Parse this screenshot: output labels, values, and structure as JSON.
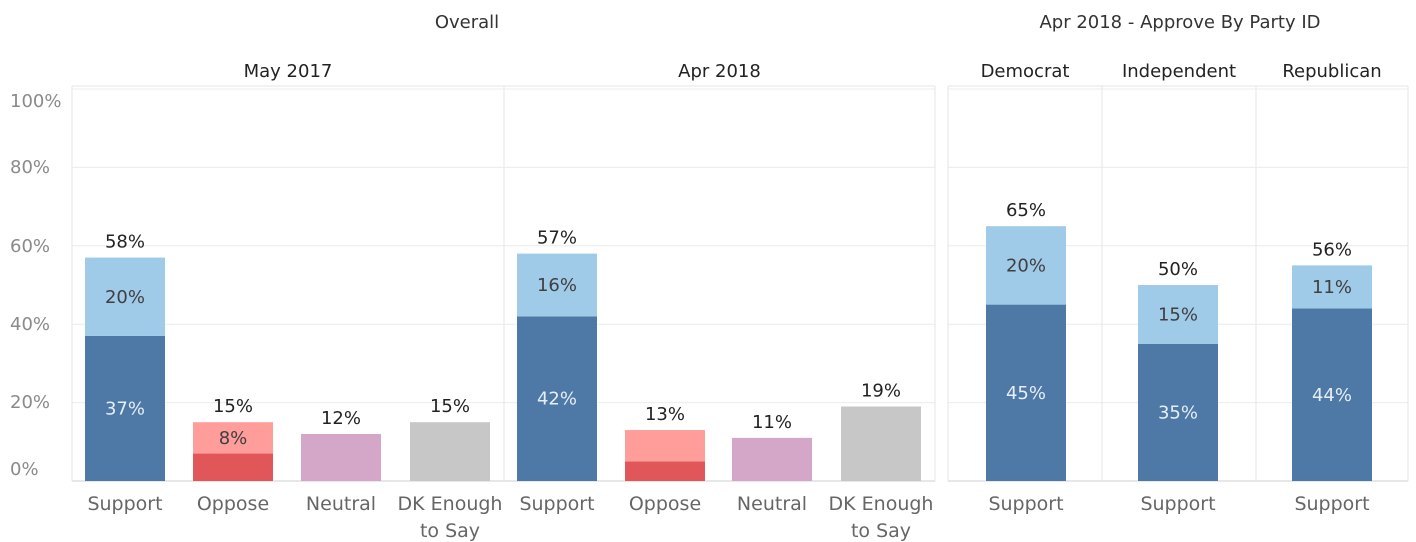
{
  "chart_data": [
    {
      "type": "bar",
      "stacked": true,
      "title": "Overall",
      "y_ticks": [
        "0%",
        "20%",
        "40%",
        "60%",
        "80%",
        "100%"
      ],
      "ylim": [
        0,
        100
      ],
      "grid": true,
      "panels": [
        {
          "label": "May 2017",
          "bars": [
            {
              "category_lines": [
                "Support"
              ],
              "segments": [
                {
                  "value": 37,
                  "label": "37%",
                  "color": "#4e79a7"
                },
                {
                  "value": 20,
                  "label": "20%",
                  "color": "#a0cbe8"
                }
              ],
              "total_value": 58,
              "total_label": "58%"
            },
            {
              "category_lines": [
                "Oppose"
              ],
              "segments": [
                {
                  "value": 7,
                  "label": "",
                  "color": "#e15759"
                },
                {
                  "value": 8,
                  "label": "8%",
                  "color": "#ff9d9a"
                }
              ],
              "total_value": 15,
              "total_label": "15%"
            },
            {
              "category_lines": [
                "Neutral"
              ],
              "segments": [
                {
                  "value": 12,
                  "label": "",
                  "color": "#d4a6c8"
                }
              ],
              "total_value": 12,
              "total_label": "12%"
            },
            {
              "category_lines": [
                "DK Enough",
                "to Say"
              ],
              "segments": [
                {
                  "value": 15,
                  "label": "",
                  "color": "#c7c7c7"
                }
              ],
              "total_value": 15,
              "total_label": "15%"
            }
          ]
        },
        {
          "label": "Apr 2018",
          "bars": [
            {
              "category_lines": [
                "Support"
              ],
              "segments": [
                {
                  "value": 42,
                  "label": "42%",
                  "color": "#4e79a7"
                },
                {
                  "value": 16,
                  "label": "16%",
                  "color": "#a0cbe8"
                }
              ],
              "total_value": 57,
              "total_label": "57%"
            },
            {
              "category_lines": [
                "Oppose"
              ],
              "segments": [
                {
                  "value": 5,
                  "label": "",
                  "color": "#e15759"
                },
                {
                  "value": 8,
                  "label": "",
                  "color": "#ff9d9a"
                }
              ],
              "total_value": 13,
              "total_label": "13%"
            },
            {
              "category_lines": [
                "Neutral"
              ],
              "segments": [
                {
                  "value": 11,
                  "label": "",
                  "color": "#d4a6c8"
                }
              ],
              "total_value": 11,
              "total_label": "11%"
            },
            {
              "category_lines": [
                "DK Enough",
                "to Say"
              ],
              "segments": [
                {
                  "value": 19,
                  "label": "",
                  "color": "#c7c7c7"
                }
              ],
              "total_value": 19,
              "total_label": "19%"
            }
          ]
        }
      ]
    },
    {
      "type": "bar",
      "stacked": true,
      "title": "Apr 2018 - Approve By Party ID",
      "ylim": [
        0,
        100
      ],
      "grid": true,
      "panels": [
        {
          "label": "Democrat",
          "bars": [
            {
              "category_lines": [
                "Support"
              ],
              "segments": [
                {
                  "value": 45,
                  "label": "45%",
                  "color": "#4e79a7"
                },
                {
                  "value": 20,
                  "label": "20%",
                  "color": "#a0cbe8"
                }
              ],
              "total_value": 65,
              "total_label": "65%"
            }
          ]
        },
        {
          "label": "Independent",
          "bars": [
            {
              "category_lines": [
                "Support"
              ],
              "segments": [
                {
                  "value": 35,
                  "label": "35%",
                  "color": "#4e79a7"
                },
                {
                  "value": 15,
                  "label": "15%",
                  "color": "#a0cbe8"
                }
              ],
              "total_value": 50,
              "total_label": "50%"
            }
          ]
        },
        {
          "label": "Republican",
          "bars": [
            {
              "category_lines": [
                "Support"
              ],
              "segments": [
                {
                  "value": 44,
                  "label": "44%",
                  "color": "#4e79a7"
                },
                {
                  "value": 11,
                  "label": "11%",
                  "color": "#a0cbe8"
                }
              ],
              "total_value": 56,
              "total_label": "56%"
            }
          ]
        }
      ]
    }
  ]
}
